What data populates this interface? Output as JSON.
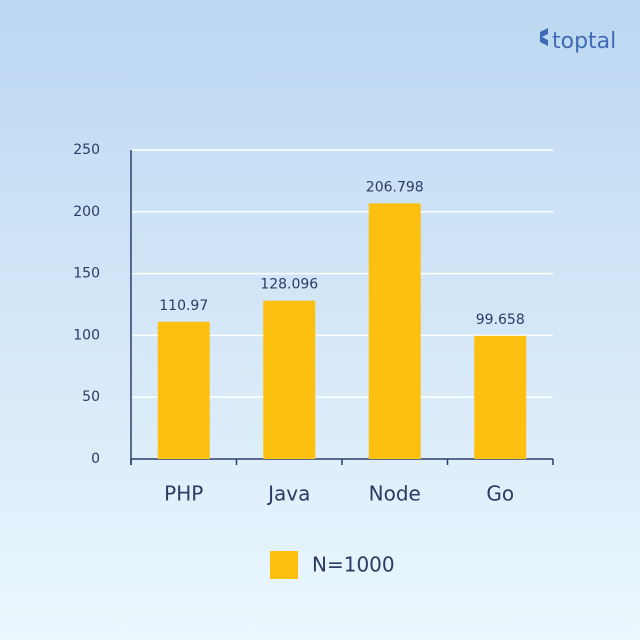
{
  "brand": "toptal",
  "chart_data": {
    "type": "bar",
    "categories": [
      "PHP",
      "Java",
      "Node",
      "Go"
    ],
    "series": [
      {
        "name": "N=1000",
        "color": "#fdc010",
        "values": [
          110.97,
          128.096,
          206.798,
          99.658
        ]
      }
    ],
    "ylim": [
      0,
      250
    ],
    "yticks": [
      0,
      50,
      100,
      150,
      200,
      250
    ],
    "grid": true,
    "legend": "bottom"
  }
}
